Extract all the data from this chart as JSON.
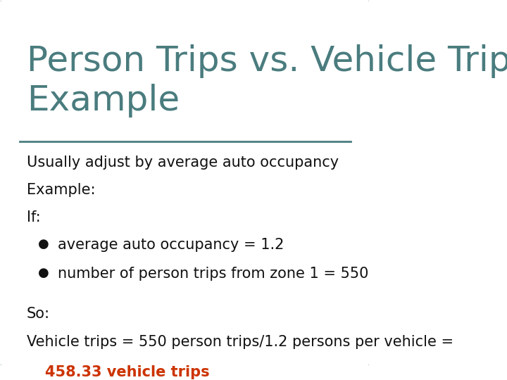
{
  "title": "Person Trips vs. Vehicle Trips\nExample",
  "title_color": "#4a7c7e",
  "background_color": "#ffffff",
  "border_color": "#5a8a8c",
  "line_color": "#4a7c7e",
  "body_lines": [
    "Usually adjust by average auto occupancy",
    "Example:",
    "If:"
  ],
  "bullet_lines": [
    "average auto occupancy = 1.2",
    "number of person trips from zone 1 = 550"
  ],
  "so_line": "So:",
  "vehicle_line": "Vehicle trips = 550 person trips/1.2 persons per vehicle =",
  "answer_line": "458.33 vehicle trips",
  "answer_color": "#cc3300",
  "body_fontsize": 15,
  "title_fontsize": 36,
  "font_family": "DejaVu Sans"
}
